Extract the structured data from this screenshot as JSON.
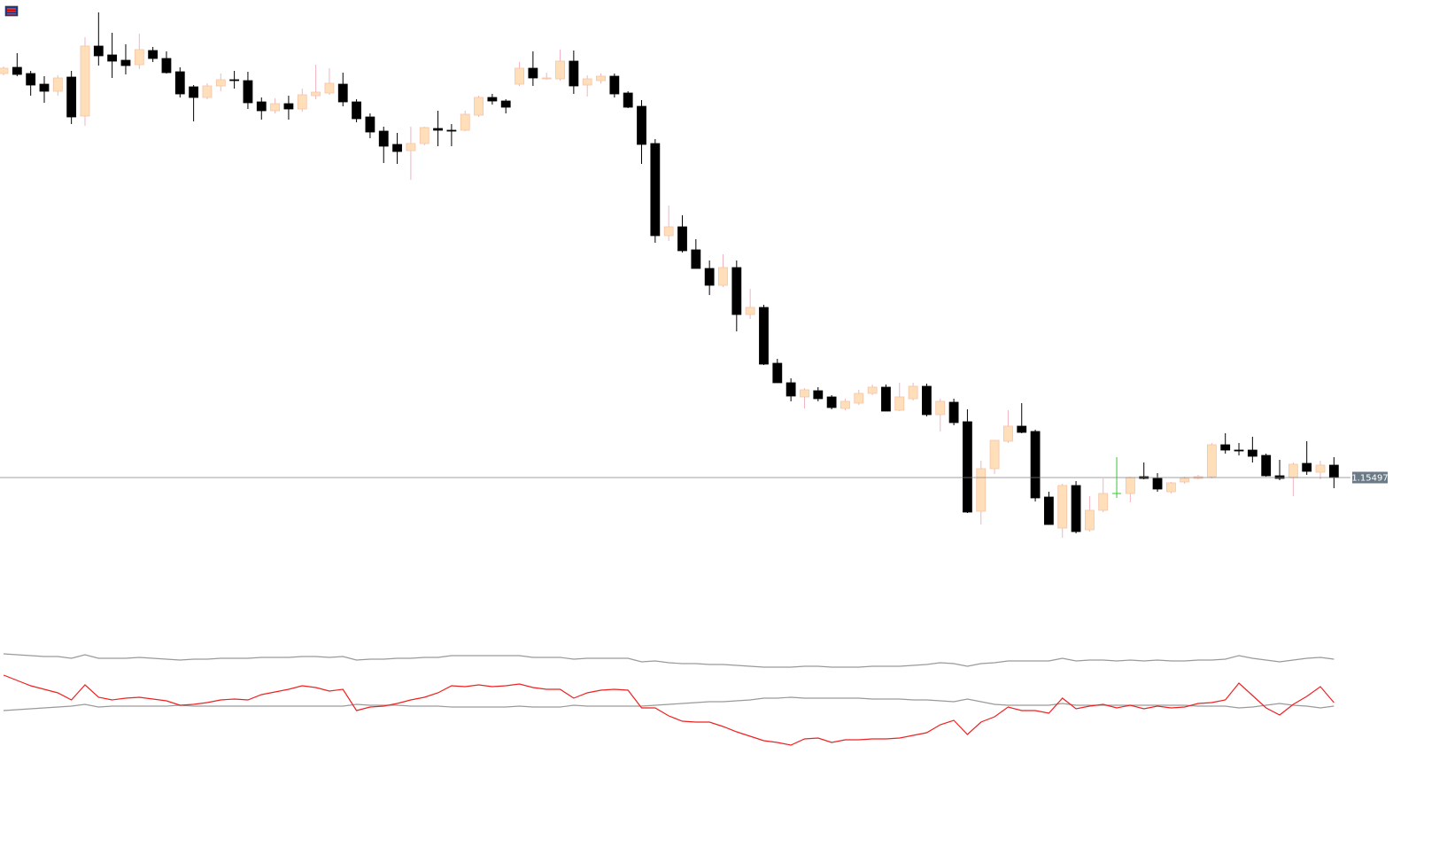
{
  "chart_data": {
    "type": "candlestick",
    "ylim": [
      1.151,
      1.16036
    ],
    "up_color": "#ffdfba",
    "up_wick_color": "#f2b3c0",
    "down_color": "#000000",
    "doji_color": "#2ecc2e",
    "open": [
      1.15953,
      1.1596,
      1.15953,
      1.15941,
      1.15933,
      1.15949,
      1.15905,
      1.15984,
      1.15974,
      1.15968,
      1.15963,
      1.15979,
      1.1597,
      1.15955,
      1.15938,
      1.15926,
      1.15939,
      1.15946,
      1.15945,
      1.15921,
      1.15911,
      1.15919,
      1.15913,
      1.15928,
      1.15931,
      1.15941,
      1.15921,
      1.15904,
      1.15888,
      1.15873,
      1.15866,
      1.15874,
      1.15891,
      1.15889,
      1.15889,
      1.15906,
      1.15926,
      1.15922,
      1.15941,
      1.15959,
      1.15947,
      1.15947,
      1.15967,
      1.1594,
      1.15945,
      1.1595,
      1.15931,
      1.15916,
      1.15874,
      1.1577,
      1.1578,
      1.15754,
      1.15733,
      1.15714,
      1.15734,
      1.15681,
      1.15689,
      1.15626,
      1.15604,
      1.15588,
      1.15595,
      1.15588,
      1.15575,
      1.15581,
      1.15592,
      1.15599,
      1.15573,
      1.15586,
      1.156,
      1.15568,
      1.15582,
      1.1556,
      1.15459,
      1.15507,
      1.15538,
      1.15555,
      1.15549,
      1.15475,
      1.1544,
      1.15488,
      1.15438,
      1.1546,
      1.15479,
      1.15479,
      1.15498,
      1.15496,
      1.15481,
      1.15492,
      1.15496,
      1.15498,
      1.15534,
      1.15528,
      1.15528,
      1.15522,
      1.15499,
      1.15497,
      1.15513,
      1.15503,
      1.15511
    ],
    "high": [
      1.15961,
      1.15976,
      1.15956,
      1.1595,
      1.15951,
      1.15956,
      1.15994,
      1.16022,
      1.15999,
      1.15986,
      1.15998,
      1.15983,
      1.15978,
      1.1596,
      1.1594,
      1.15942,
      1.15953,
      1.15956,
      1.15955,
      1.15926,
      1.15925,
      1.15928,
      1.15936,
      1.15963,
      1.15959,
      1.15954,
      1.15924,
      1.15908,
      1.15893,
      1.15886,
      1.15893,
      1.15893,
      1.15911,
      1.15896,
      1.15911,
      1.15928,
      1.1593,
      1.15924,
      1.15966,
      1.15978,
      1.15954,
      1.1598,
      1.15979,
      1.15951,
      1.15953,
      1.15953,
      1.15933,
      1.15923,
      1.15879,
      1.15804,
      1.15793,
      1.15766,
      1.15742,
      1.15749,
      1.15742,
      1.1571,
      1.15692,
      1.15631,
      1.15609,
      1.15598,
      1.15599,
      1.1559,
      1.15586,
      1.15596,
      1.15602,
      1.15602,
      1.15604,
      1.15604,
      1.15603,
      1.15586,
      1.15586,
      1.15574,
      1.15516,
      1.15539,
      1.15573,
      1.15581,
      1.15551,
      1.15481,
      1.1549,
      1.15493,
      1.15476,
      1.15496,
      1.1552,
      1.15498,
      1.15514,
      1.15502,
      1.15492,
      1.15498,
      1.155,
      1.15536,
      1.15547,
      1.15536,
      1.15543,
      1.15524,
      1.15517,
      1.15514,
      1.15538,
      1.15516,
      1.1552
    ],
    "low": [
      1.15951,
      1.1595,
      1.15928,
      1.1592,
      1.15928,
      1.15896,
      1.15894,
      1.15962,
      1.15948,
      1.15952,
      1.15958,
      1.15966,
      1.15953,
      1.15926,
      1.15899,
      1.15924,
      1.15933,
      1.15936,
      1.15913,
      1.15901,
      1.15908,
      1.15901,
      1.1591,
      1.15924,
      1.15929,
      1.15916,
      1.15898,
      1.1588,
      1.15852,
      1.15851,
      1.15833,
      1.15872,
      1.15871,
      1.15871,
      1.15888,
      1.15904,
      1.15918,
      1.15908,
      1.15939,
      1.15939,
      1.15946,
      1.15945,
      1.1593,
      1.15927,
      1.15942,
      1.15926,
      1.15914,
      1.15851,
      1.15762,
      1.15764,
      1.15751,
      1.15733,
      1.15703,
      1.15712,
      1.15662,
      1.15676,
      1.15624,
      1.15604,
      1.15583,
      1.15575,
      1.15583,
      1.15574,
      1.15573,
      1.15579,
      1.1559,
      1.15572,
      1.15572,
      1.15584,
      1.15566,
      1.15549,
      1.15556,
      1.15457,
      1.15444,
      1.15501,
      1.15536,
      1.15547,
      1.1547,
      1.15444,
      1.15429,
      1.15434,
      1.15436,
      1.15458,
      1.15474,
      1.15469,
      1.15495,
      1.15481,
      1.15479,
      1.1549,
      1.15495,
      1.15496,
      1.15524,
      1.15522,
      1.15514,
      1.15498,
      1.15494,
      1.15476,
      1.155,
      1.15495,
      1.15485
    ],
    "close": [
      1.15959,
      1.15952,
      1.1594,
      1.15933,
      1.15948,
      1.15904,
      1.15984,
      1.15973,
      1.15967,
      1.15962,
      1.1598,
      1.1597,
      1.15954,
      1.1593,
      1.15926,
      1.15939,
      1.15946,
      1.15945,
      1.1592,
      1.15911,
      1.15919,
      1.15913,
      1.15929,
      1.15932,
      1.15942,
      1.15921,
      1.15902,
      1.15887,
      1.15871,
      1.15865,
      1.15874,
      1.15892,
      1.15889,
      1.15888,
      1.15907,
      1.15926,
      1.15922,
      1.15915,
      1.15959,
      1.15948,
      1.15948,
      1.15967,
      1.15939,
      1.15947,
      1.1595,
      1.1593,
      1.15915,
      1.15873,
      1.1577,
      1.1578,
      1.15753,
      1.15733,
      1.15714,
      1.15734,
      1.15681,
      1.15689,
      1.15625,
      1.15604,
      1.15589,
      1.15596,
      1.15586,
      1.15576,
      1.15583,
      1.15592,
      1.15599,
      1.15572,
      1.15588,
      1.156,
      1.15568,
      1.15583,
      1.15559,
      1.15458,
      1.15507,
      1.15539,
      1.15555,
      1.15548,
      1.15474,
      1.15444,
      1.15488,
      1.15436,
      1.1546,
      1.15479,
      1.15479,
      1.15497,
      1.15496,
      1.15484,
      1.15491,
      1.15496,
      1.15498,
      1.15534,
      1.15528,
      1.15527,
      1.15521,
      1.15499,
      1.15496,
      1.15512,
      1.15504,
      1.15511,
      1.15497
    ],
    "last_price": 1.15497,
    "last_price_color": "#6b7a87",
    "indicator": {
      "type": "line",
      "ylim": [
        0,
        200
      ],
      "series": [
        {
          "color": "#9a9a9a",
          "values": [
            162,
            161,
            160,
            159,
            159,
            157,
            161,
            157,
            157,
            157,
            158,
            157,
            156,
            155,
            156,
            156,
            157,
            157,
            157,
            158,
            158,
            158,
            159,
            159,
            158,
            159,
            155,
            156,
            156,
            157,
            157,
            158,
            158,
            160,
            160,
            160,
            160,
            160,
            160,
            158,
            158,
            158,
            156,
            157,
            157,
            157,
            157,
            153,
            154,
            152,
            151,
            151,
            150,
            150,
            149,
            148,
            147,
            147,
            147,
            148,
            148,
            147,
            147,
            147,
            148,
            148,
            148,
            149,
            150,
            152,
            151,
            148,
            151,
            152,
            154,
            154,
            154,
            154,
            157,
            154,
            155,
            155,
            154,
            155,
            154,
            155,
            154,
            154,
            155,
            155,
            156,
            160,
            157,
            155,
            153,
            155,
            157,
            158,
            156
          ]
        },
        {
          "color": "#9a9a9a",
          "values": [
            98,
            99,
            100,
            101,
            102,
            103,
            105,
            102,
            103,
            103,
            103,
            103,
            103,
            104,
            103,
            103,
            103,
            103,
            103,
            103,
            103,
            103,
            103,
            103,
            103,
            103,
            105,
            104,
            104,
            104,
            103,
            103,
            103,
            102,
            102,
            102,
            102,
            102,
            103,
            102,
            102,
            102,
            104,
            103,
            103,
            103,
            103,
            103,
            104,
            105,
            106,
            107,
            108,
            108,
            109,
            110,
            112,
            112,
            113,
            112,
            112,
            112,
            112,
            112,
            111,
            111,
            111,
            110,
            110,
            109,
            108,
            111,
            108,
            105,
            104,
            104,
            104,
            104,
            106,
            104,
            104,
            104,
            104,
            104,
            104,
            104,
            104,
            104,
            103,
            103,
            103,
            101,
            102,
            104,
            106,
            104,
            103,
            101,
            103
          ]
        },
        {
          "color": "#ee2222",
          "values": [
            138,
            132,
            126,
            122,
            118,
            110,
            127,
            113,
            110,
            112,
            113,
            111,
            109,
            104,
            105,
            107,
            110,
            111,
            110,
            116,
            119,
            122,
            126,
            124,
            120,
            122,
            98,
            102,
            103,
            106,
            110,
            113,
            118,
            126,
            125,
            127,
            125,
            126,
            128,
            124,
            122,
            122,
            112,
            118,
            121,
            122,
            121,
            101,
            101,
            92,
            86,
            85,
            85,
            80,
            74,
            69,
            64,
            62,
            59,
            66,
            67,
            62,
            65,
            65,
            66,
            66,
            67,
            70,
            73,
            82,
            87,
            71,
            85,
            91,
            102,
            98,
            98,
            95,
            112,
            100,
            103,
            105,
            101,
            104,
            100,
            103,
            101,
            102,
            106,
            107,
            110,
            129,
            115,
            101,
            93,
            105,
            114,
            125,
            107
          ]
        }
      ]
    }
  }
}
